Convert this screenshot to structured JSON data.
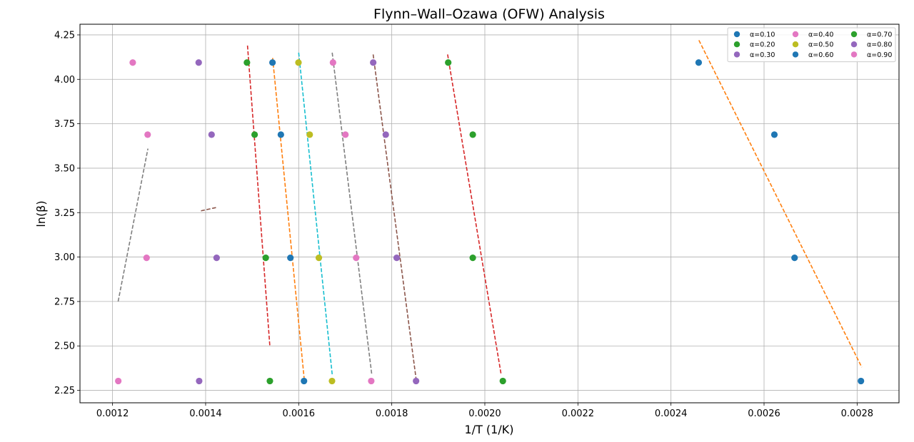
{
  "chart_data": {
    "type": "scatter",
    "title": "Flynn–Wall–Ozawa (OFW)  Analysis",
    "xlabel": "1/T (1/K)",
    "ylabel": "ln(β)",
    "xlim": [
      0.00113,
      0.00289
    ],
    "ylim": [
      2.18,
      4.31
    ],
    "x_ticks": [
      0.0012,
      0.0014,
      0.0016,
      0.0018,
      0.002,
      0.0022,
      0.0024,
      0.0026,
      0.0028
    ],
    "x_tick_labels": [
      "0.0012",
      "0.0014",
      "0.0016",
      "0.0018",
      "0.0020",
      "0.0022",
      "0.0024",
      "0.0026",
      "0.0028"
    ],
    "y_ticks": [
      2.25,
      2.5,
      2.75,
      3.0,
      3.25,
      3.5,
      3.75,
      4.0,
      4.25
    ],
    "y_tick_labels": [
      "2.25",
      "2.50",
      "2.75",
      "3.00",
      "3.25",
      "3.50",
      "3.75",
      "4.00",
      "4.25"
    ],
    "grid": true,
    "legend_position": "top-right",
    "series": [
      {
        "name": "α=0.10",
        "color": "#1f77b4",
        "x": [
          0.0028082,
          0.0026656,
          0.0026222,
          0.0024595
        ],
        "y": [
          2.3026,
          2.9957,
          3.6889,
          4.0943
        ],
        "fit": {
          "x": [
            0.00246,
            0.00281
          ],
          "y": [
            4.22,
            2.38
          ],
          "color": "#ff7f0e"
        }
      },
      {
        "name": "α=0.20",
        "color": "#2ca02c",
        "x": [
          0.0020387,
          0.0019741,
          0.0019741,
          0.0019213
        ],
        "y": [
          2.3026,
          2.9957,
          3.6889,
          4.0943
        ],
        "fit": {
          "x": [
            0.00192,
            0.002035
          ],
          "y": [
            4.14,
            2.34
          ],
          "color": "#d62728"
        }
      },
      {
        "name": "α=0.30",
        "color": "#9467bd",
        "x": [
          0.0018522,
          0.0018106,
          0.0017871,
          0.0017601
        ],
        "y": [
          2.3026,
          2.9957,
          3.6889,
          4.0943
        ],
        "fit": {
          "x": [
            0.00176,
            0.001852
          ],
          "y": [
            4.14,
            2.32
          ],
          "color": "#8c564b"
        }
      },
      {
        "name": "α=0.40",
        "color": "#e377c2",
        "x": [
          0.0017559,
          0.0017235,
          0.0017004,
          0.0016737
        ],
        "y": [
          2.3026,
          2.9957,
          3.6889,
          4.0943
        ],
        "fit": {
          "x": [
            0.001672,
            0.001757
          ],
          "y": [
            4.15,
            2.34
          ],
          "color": "#7f7f7f"
        }
      },
      {
        "name": "α=0.50",
        "color": "#bcbd22",
        "x": [
          0.0016716,
          0.0016433,
          0.0016237,
          0.0015995
        ],
        "y": [
          2.3026,
          2.9957,
          3.6889,
          4.0943
        ],
        "fit": {
          "x": [
            0.0016,
            0.001672
          ],
          "y": [
            4.15,
            2.34
          ],
          "color": "#17becf"
        }
      },
      {
        "name": "α=0.60",
        "color": "#1f77b4",
        "x": [
          0.0016114,
          0.0015822,
          0.0015617,
          0.0015437
        ],
        "y": [
          2.3026,
          2.9957,
          3.6889,
          4.0943
        ],
        "fit": {
          "x": [
            0.001544,
            0.001612
          ],
          "y": [
            4.12,
            2.31
          ],
          "color": "#ff7f0e"
        }
      },
      {
        "name": "α=0.70",
        "color": "#2ca02c",
        "x": [
          0.0015381,
          0.0015292,
          0.0015053,
          0.0014888
        ],
        "y": [
          2.3026,
          2.9957,
          3.6889,
          4.0943
        ],
        "fit": {
          "x": [
            0.00149,
            0.001538
          ],
          "y": [
            4.19,
            2.5
          ],
          "color": "#d62728"
        }
      },
      {
        "name": "α=0.80",
        "color": "#9467bd",
        "x": [
          0.0013861,
          0.0014236,
          0.0014128,
          0.0013851
        ],
        "y": [
          2.3026,
          2.9957,
          3.6889,
          4.0943
        ],
        "fit": {
          "x": [
            0.00139,
            0.001425
          ],
          "y": [
            3.26,
            3.28
          ],
          "color": "#8c564b"
        }
      },
      {
        "name": "α=0.90",
        "color": "#e377c2",
        "x": [
          0.0012123,
          0.0012731,
          0.0012754,
          0.0012434
        ],
        "y": [
          2.3026,
          2.9957,
          3.6889,
          4.0943
        ],
        "fit": {
          "x": [
            0.001212,
            0.001276
          ],
          "y": [
            2.75,
            3.61
          ],
          "color": "#7f7f7f"
        }
      }
    ]
  }
}
